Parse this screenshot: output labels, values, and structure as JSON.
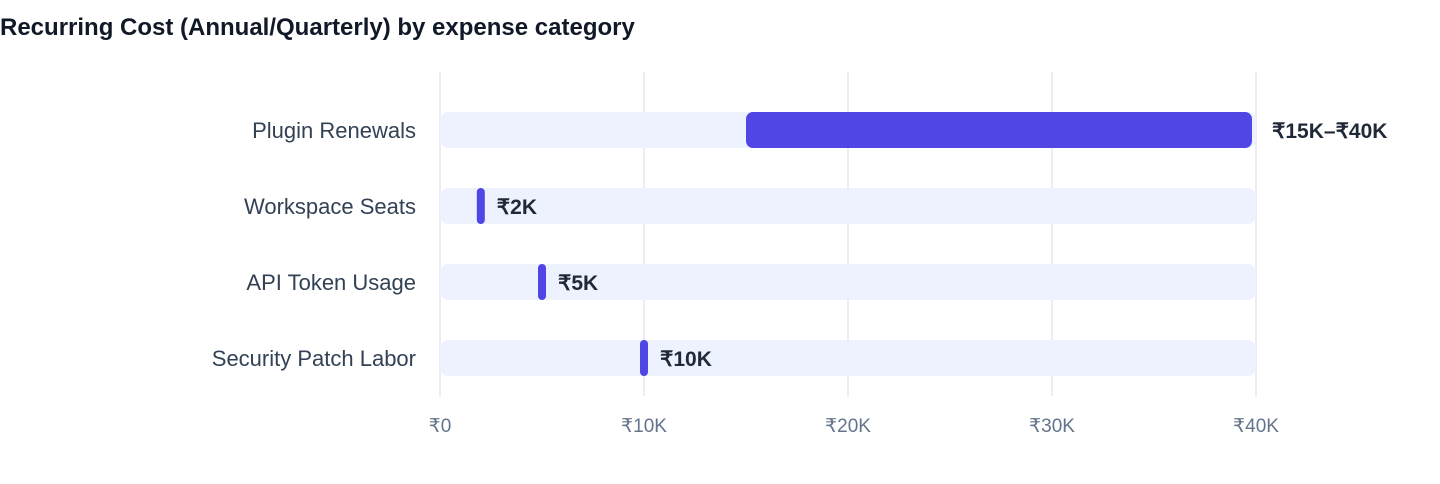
{
  "chart_data": {
    "type": "bar",
    "title": "Recurring Cost (Annual/Quarterly) by expense category",
    "categories": [
      "Plugin Renewals",
      "Workspace Seats",
      "API Token Usage",
      "Security Patch Labor"
    ],
    "ranges": [
      {
        "low": 15000,
        "high": 40000,
        "label": "₹15K–₹40K"
      },
      {
        "low": 2000,
        "high": 2000,
        "label": "₹2K"
      },
      {
        "low": 5000,
        "high": 5000,
        "label": "₹5K"
      },
      {
        "low": 10000,
        "high": 10000,
        "label": "₹10K"
      }
    ],
    "xlim": [
      0,
      40000
    ],
    "x_ticks": [
      {
        "value": 0,
        "label": "₹0"
      },
      {
        "value": 10000,
        "label": "₹10K"
      },
      {
        "value": 20000,
        "label": "₹20K"
      },
      {
        "value": 30000,
        "label": "₹30K"
      },
      {
        "value": 40000,
        "label": "₹40K"
      }
    ],
    "grid": true,
    "colors": {
      "bar": "#4f46e5",
      "track": "#eef2ff",
      "grid": "#e5e7eb"
    }
  }
}
